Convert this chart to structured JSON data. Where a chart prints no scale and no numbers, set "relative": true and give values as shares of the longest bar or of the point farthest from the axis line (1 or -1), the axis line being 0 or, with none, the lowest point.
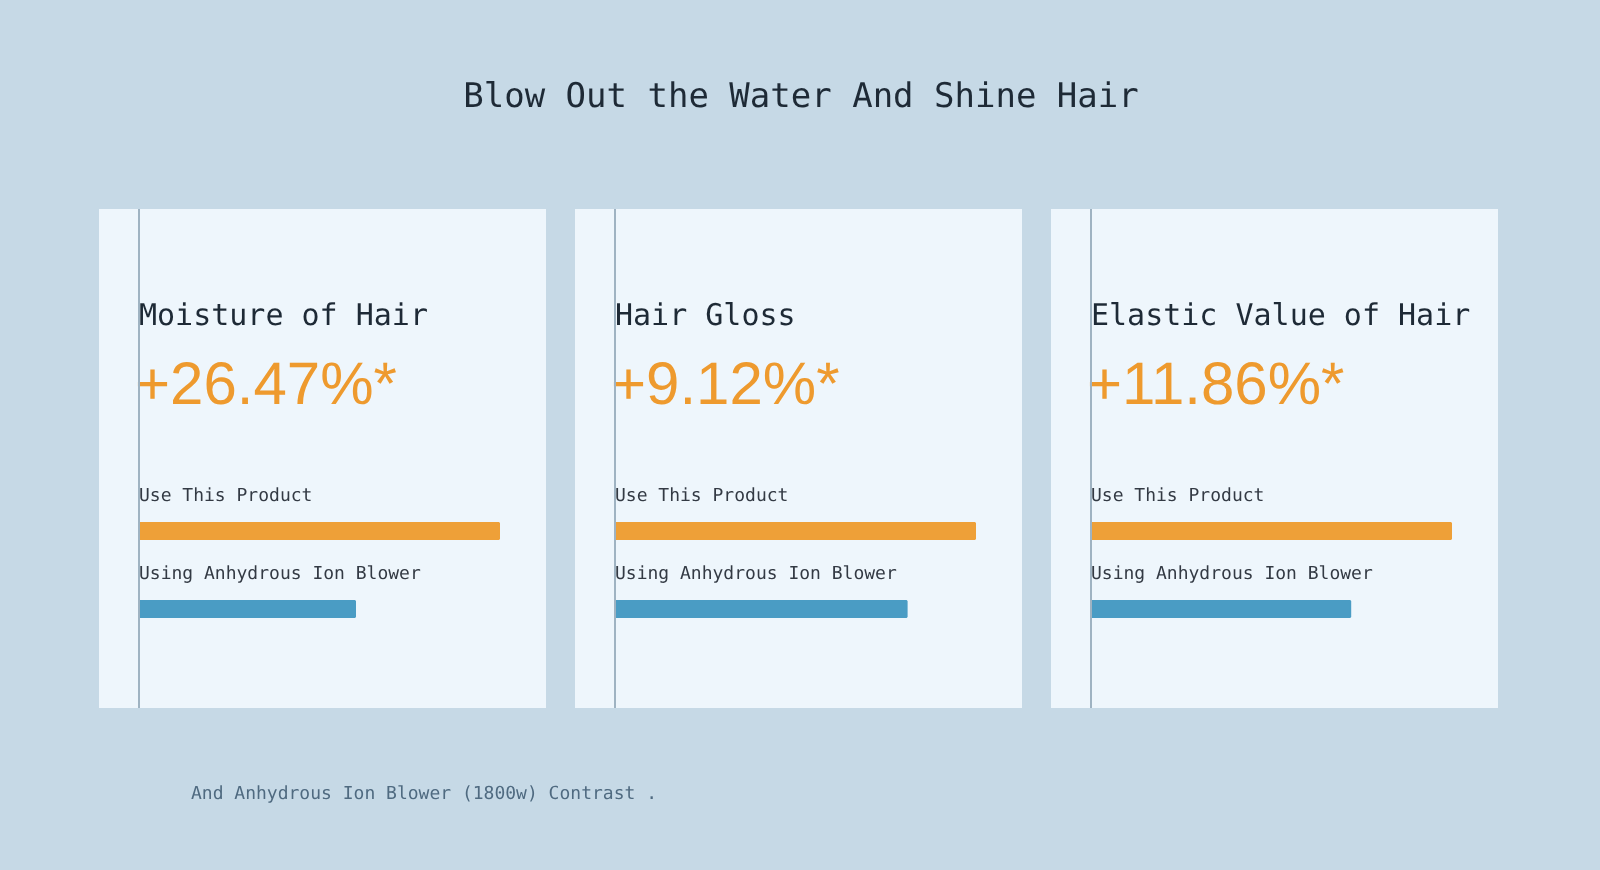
{
  "chart_data": [
    {
      "type": "other",
      "title": "Blow Out the Water And Shine Hair",
      "annotations": [
        "And Anhydrous Ion Blower (1800w) Contrast ."
      ]
    },
    {
      "type": "bar",
      "orientation": "horizontal",
      "relative": true,
      "title": "Moisture of Hair",
      "subtitle": "+26.47%*",
      "categories": [
        "Use This Product",
        "Using Anhydrous Ion Blower"
      ],
      "values": [
        1,
        0.6
      ],
      "colors": [
        "#eea038",
        "#4a9cc4"
      ]
    },
    {
      "type": "bar",
      "orientation": "horizontal",
      "relative": true,
      "title": "Hair Gloss",
      "subtitle": "+9.12%*",
      "categories": [
        "Use This Product",
        "Using Anhydrous Ion Blower"
      ],
      "values": [
        1,
        0.81
      ],
      "colors": [
        "#eea038",
        "#4a9cc4"
      ]
    },
    {
      "type": "bar",
      "orientation": "horizontal",
      "relative": true,
      "title": "Elastic Value of Hair",
      "subtitle": "+11.86%*",
      "categories": [
        "Use This Product",
        "Using Anhydrous Ion Blower"
      ],
      "values": [
        1,
        0.72
      ],
      "colors": [
        "#eea038",
        "#4a9cc4"
      ]
    }
  ]
}
